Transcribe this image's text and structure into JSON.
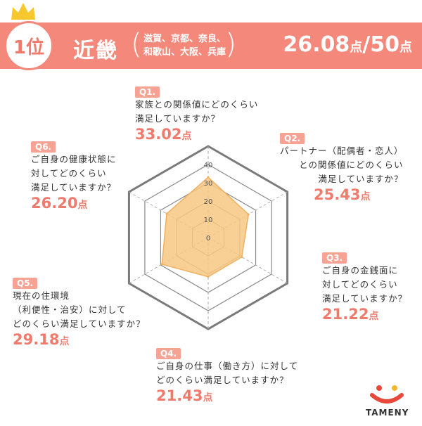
{
  "header": {
    "rank": "1位",
    "region": "近畿",
    "prefectures": "滋賀、京都、奈良、\n和歌山、大阪、兵庫",
    "score": "26.08",
    "score_unit": "点",
    "score_total": "/50",
    "score_total_unit": "点"
  },
  "questions": [
    {
      "tag": "Q1.",
      "text": "家族との関係値にどのくらい\n満足していますか？",
      "value": "33.02",
      "unit": "点"
    },
    {
      "tag": "Q2.",
      "text": "パートナー（配偶者・恋人）\nとの関係値にどのくらい\n満足していますか？",
      "value": "25.43",
      "unit": "点"
    },
    {
      "tag": "Q3.",
      "text": "ご自身の金銭面に\n対してどのくらい\n満足していますか？",
      "value": "21.22",
      "unit": "点"
    },
    {
      "tag": "Q4.",
      "text": "ご自身の仕事（働き方）に対して\nどのくらい満足していますか？",
      "value": "21.43",
      "unit": "点"
    },
    {
      "tag": "Q5.",
      "text": "現在の住環境\n（利便性・治安）に対して\nどのくらい満足していますか？",
      "value": "29.18",
      "unit": "点"
    },
    {
      "tag": "Q6.",
      "text": "ご自身の健康状態に\n対してどのくらい\n満足していますか？",
      "value": "26.20",
      "unit": "点"
    }
  ],
  "chart_data": {
    "type": "radar",
    "categories": [
      "Q1.",
      "Q2.",
      "Q3.",
      "Q4.",
      "Q5.",
      "Q6."
    ],
    "values": [
      33.02,
      25.43,
      21.22,
      21.43,
      29.18,
      26.2
    ],
    "ticks": [
      "0",
      "10",
      "20",
      "30",
      "40"
    ],
    "range": [
      0,
      40
    ],
    "fill_color": "#f7c884",
    "stroke_color": "#f0b060"
  },
  "logo": {
    "text": "TAMENY"
  },
  "colors": {
    "accent": "#f3887b",
    "value": "#f07a6b"
  }
}
